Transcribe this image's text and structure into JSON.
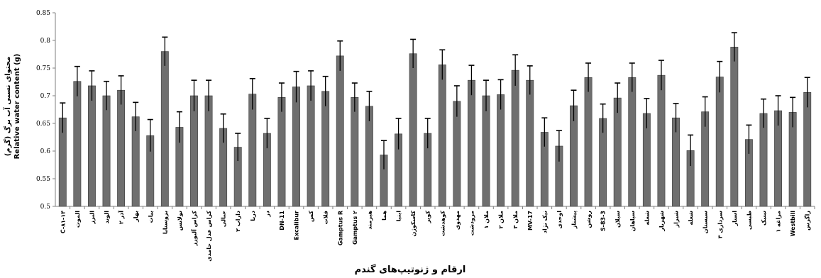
{
  "chart_data": {
    "type": "bar",
    "xlabel": "ارقام و ژنوتیپ‌های گندم",
    "ylabel_line1": "محتوای نسبی آب برگ (گرم)",
    "ylabel_line2": "Relative water content (g)",
    "ylim": [
      0.5,
      0.85
    ],
    "yticks": [
      "0.5",
      "0.55",
      "0.6",
      "0.65",
      "0.7",
      "0.75",
      "0.8",
      "0.85"
    ],
    "grid": false,
    "legend": "none",
    "colors": {
      "bar": "#6f6f6f",
      "bar_edge": "#3a3a3a",
      "error": "#000000",
      "axis": "#7f7f7f"
    },
    "categories": [
      "C-۸۱-۱۴",
      "الموت",
      "البرز",
      "الوند",
      "آذر ۲",
      "بهار",
      "بیات",
      "بزوستایا",
      "تولاتس",
      "کراس آلبورز",
      "کراس عدل حامدی",
      "جبالی",
      "داراب ۲",
      "دریا",
      "دز",
      "DN-11",
      "Excalibur",
      "کس",
      "فلات",
      "Gamptus R",
      "Gamptus ۲",
      "هیرمند",
      "هما",
      "اینیا",
      "کاسکوژن",
      "کویر",
      "کوهدشت",
      "مهدوی",
      "مرودشت",
      "ملان ۱",
      "ملان ۲",
      "ملان ۳",
      "MV-17",
      "نیک نژاد",
      "اوحدی",
      "پیشتاز",
      "روشن",
      "S-83-3",
      "سبلان",
      "سپاهان",
      "شعله",
      "شهریار",
      "شیراز",
      "شعله",
      "سیستان",
      "سرداری ۳",
      "استار",
      "طبسی",
      "تبنیک",
      "مراغه ۱",
      "Westbill",
      "زاگرس"
    ],
    "values": [
      0.66,
      0.726,
      0.718,
      0.7,
      0.71,
      0.662,
      0.628,
      0.78,
      0.643,
      0.7,
      0.7,
      0.641,
      0.607,
      0.703,
      0.632,
      0.697,
      0.716,
      0.718,
      0.708,
      0.772,
      0.697,
      0.681,
      0.593,
      0.631,
      0.776,
      0.632,
      0.756,
      0.69,
      0.728,
      0.7,
      0.702,
      0.746,
      0.728,
      0.634,
      0.609,
      0.682,
      0.733,
      0.659,
      0.696,
      0.733,
      0.668,
      0.737,
      0.66,
      0.601,
      0.671,
      0.734,
      0.788,
      0.621,
      0.668,
      0.673,
      0.67,
      0.706
    ],
    "errors": [
      0.027,
      0.027,
      0.027,
      0.026,
      0.026,
      0.026,
      0.029,
      0.026,
      0.028,
      0.028,
      0.028,
      0.026,
      0.025,
      0.028,
      0.027,
      0.026,
      0.028,
      0.027,
      0.027,
      0.027,
      0.026,
      0.027,
      0.026,
      0.028,
      0.026,
      0.027,
      0.027,
      0.028,
      0.027,
      0.028,
      0.027,
      0.028,
      0.026,
      0.026,
      0.028,
      0.028,
      0.026,
      0.026,
      0.027,
      0.026,
      0.027,
      0.027,
      0.026,
      0.028,
      0.027,
      0.028,
      0.026,
      0.026,
      0.026,
      0.027,
      0.027,
      0.027
    ]
  }
}
